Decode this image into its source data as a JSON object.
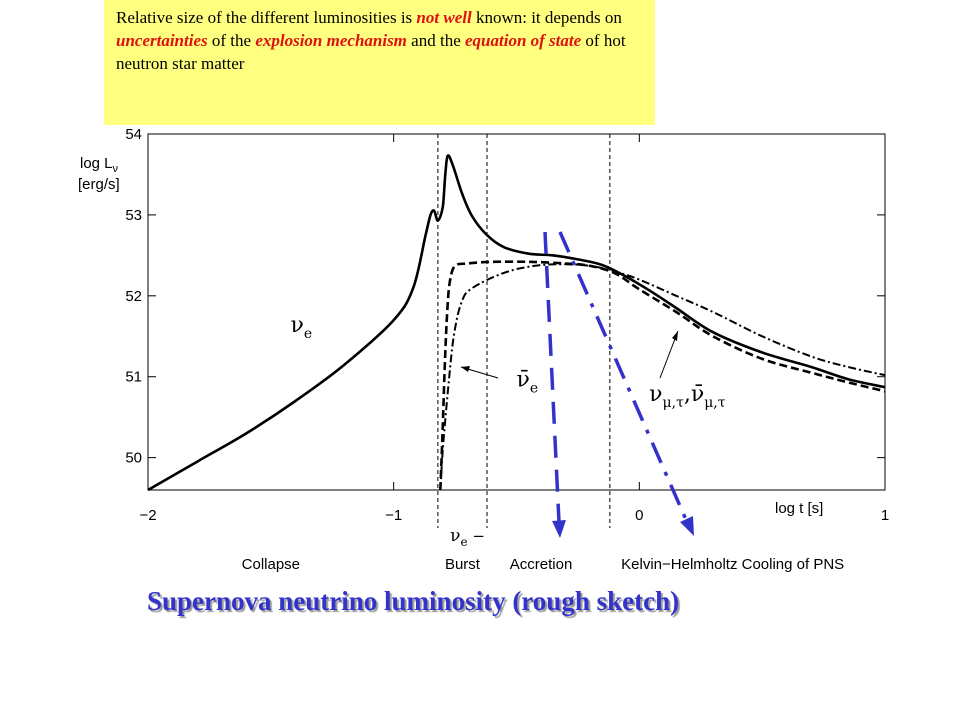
{
  "note": {
    "parts": [
      {
        "text": "Relative size of the different luminosities is ",
        "em": false
      },
      {
        "text": "not well",
        "em": true
      },
      {
        "text": " known: it depends on ",
        "em": false
      },
      {
        "text": "uncertainties",
        "em": true
      },
      {
        "text": " of the  ",
        "em": false
      },
      {
        "text": "explosion mechanism",
        "em": true
      },
      {
        "text": " and the ",
        "em": false
      },
      {
        "text": "equation of state",
        "em": true
      },
      {
        "text": " of hot neutron star matter",
        "em": false
      }
    ],
    "emphasis_color": "#e01010",
    "background": "#ffff80"
  },
  "caption": "Supernova neutrino luminosity (rough sketch)",
  "caption_color": "#3333cc",
  "arrow_color": "#3333cc",
  "chart_data": {
    "type": "line",
    "ylabel_line1": "log L",
    "ylabel_sub": "ν",
    "ylabel_line2": "[erg/s]",
    "xlabel": "log t [s]",
    "xlim": [
      -2,
      1
    ],
    "ylim": [
      49.6,
      54
    ],
    "xticks": [
      -2,
      -1,
      0,
      1
    ],
    "xtick_labels": [
      "−2",
      "−1",
      "0",
      "1"
    ],
    "yticks": [
      50,
      51,
      52,
      53,
      54
    ],
    "grid": false,
    "phase_boundaries": [
      -0.82,
      -0.62,
      -0.12
    ],
    "phases": [
      {
        "label": "Collapse",
        "x": -1.5
      },
      {
        "label": "Burst",
        "x": -0.72
      },
      {
        "label": "Accretion",
        "x": -0.4
      },
      {
        "label": "Kelvin−Helmholtz Cooling of PNS",
        "x": 0.38
      }
    ],
    "burst_sub_label": {
      "base": "ν",
      "sub": "e",
      "suffix": " −"
    },
    "series": [
      {
        "name": "νe",
        "style": "solid",
        "x": [
          -2,
          -1.8,
          -1.6,
          -1.4,
          -1.2,
          -1.0,
          -0.92,
          -0.87,
          -0.85,
          -0.835,
          -0.82,
          -0.8,
          -0.79,
          -0.78,
          -0.76,
          -0.72,
          -0.68,
          -0.62,
          -0.55,
          -0.45,
          -0.35,
          -0.25,
          -0.15,
          -0.05,
          0.05,
          0.15,
          0.3,
          0.5,
          0.7,
          0.85,
          1.0
        ],
        "y": [
          49.6,
          49.95,
          50.3,
          50.7,
          51.15,
          51.7,
          52.1,
          52.75,
          53.0,
          53.05,
          52.93,
          53.1,
          53.5,
          53.73,
          53.62,
          53.25,
          52.98,
          52.75,
          52.6,
          52.52,
          52.5,
          52.45,
          52.38,
          52.23,
          52.05,
          51.85,
          51.55,
          51.3,
          51.12,
          50.97,
          50.87
        ]
      },
      {
        "name": "ν̄e",
        "style": "dashed",
        "x": [
          -0.81,
          -0.8,
          -0.79,
          -0.78,
          -0.77,
          -0.75,
          -0.7,
          -0.6,
          -0.45,
          -0.3,
          -0.2,
          -0.1,
          0.0,
          0.15,
          0.3,
          0.5,
          0.7,
          0.85,
          1.0
        ],
        "y": [
          49.6,
          50.4,
          51.3,
          51.9,
          52.2,
          52.37,
          52.4,
          52.42,
          52.42,
          52.4,
          52.37,
          52.28,
          52.08,
          51.8,
          51.5,
          51.22,
          51.05,
          50.93,
          50.82
        ]
      },
      {
        "name": "νμ,τ, ν̄μ,τ",
        "style": "dashdot",
        "x": [
          -0.81,
          -0.8,
          -0.78,
          -0.76,
          -0.74,
          -0.72,
          -0.7,
          -0.65,
          -0.58,
          -0.5,
          -0.4,
          -0.3,
          -0.2,
          -0.1,
          0.0,
          0.15,
          0.3,
          0.5,
          0.7,
          0.85,
          1.0
        ],
        "y": [
          49.6,
          50.1,
          50.8,
          51.4,
          51.75,
          51.95,
          52.05,
          52.15,
          52.25,
          52.33,
          52.38,
          52.39,
          52.37,
          52.3,
          52.2,
          52.0,
          51.8,
          51.5,
          51.25,
          51.12,
          51.02
        ]
      }
    ],
    "annotations": [
      {
        "text": "ν",
        "sub": "e",
        "x": -1.42,
        "y": 51.55
      },
      {
        "text": "ν̄",
        "sub": "e",
        "x": -0.5,
        "y": 50.88
      },
      {
        "text": "ν",
        "sub": "μ,τ",
        "text2": ",ν̄",
        "sub2": "μ,τ",
        "x": 0.04,
        "y": 50.7
      }
    ]
  }
}
